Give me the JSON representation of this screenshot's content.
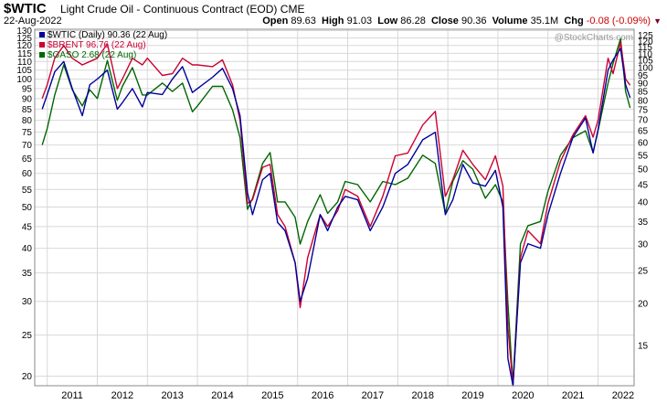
{
  "header": {
    "symbol": "$WTIC",
    "description": "Light Crude Oil - Continuous Contract (EOD)",
    "exchange": "CME",
    "date": "22-Aug-2022",
    "open_label": "Open",
    "open": "89.63",
    "high_label": "High",
    "high": "91.03",
    "low_label": "Low",
    "low": "86.28",
    "close_label": "Close",
    "close": "90.36",
    "volume_label": "Volume",
    "volume": "35.1M",
    "chg_label": "Chg",
    "chg": "-0.08 (-0.09%)",
    "watermark": "@StockCharts.com"
  },
  "colors": {
    "wtic": "#000099",
    "brent": "#cc0033",
    "gaso": "#006600",
    "grid": "#d8d8d8",
    "frame": "#888888",
    "down": "#cc0000"
  },
  "chart_data": {
    "type": "line",
    "y_scale": "log",
    "grid": true,
    "legend_position": "top-left",
    "x_tick_labels": [
      "2011",
      "2012",
      "2013",
      "2014",
      "2015",
      "2016",
      "2017",
      "2018",
      "2019",
      "2020",
      "2021",
      "2022"
    ],
    "left_axis": {
      "ylim": [
        19,
        131
      ],
      "ticks": [
        130,
        125,
        120,
        115,
        110,
        105,
        100,
        95,
        90,
        85,
        80,
        75,
        70,
        65,
        60,
        55,
        50,
        45,
        40,
        35,
        30,
        25,
        20
      ]
    },
    "right_axis": {
      "ylim": [
        11.4,
        130
      ],
      "ticks": [
        125,
        120,
        115,
        110,
        105,
        100,
        95,
        90,
        85,
        80,
        75,
        70,
        65,
        60,
        55,
        50,
        45,
        40,
        35,
        30,
        25,
        20,
        15
      ]
    },
    "series": [
      {
        "name": "$WTIC (Daily) 90.36 (22 Aug)",
        "axis": "left",
        "x": [
          2010.9,
          2011.0,
          2011.15,
          2011.33,
          2011.5,
          2011.7,
          2011.85,
          2012.0,
          2012.2,
          2012.4,
          2012.5,
          2012.7,
          2012.9,
          2013.0,
          2013.3,
          2013.5,
          2013.7,
          2013.9,
          2014.0,
          2014.3,
          2014.5,
          2014.7,
          2014.85,
          2015.0,
          2015.1,
          2015.3,
          2015.45,
          2015.6,
          2015.75,
          2015.95,
          2016.05,
          2016.2,
          2016.45,
          2016.6,
          2016.8,
          2016.95,
          2017.2,
          2017.45,
          2017.7,
          2017.95,
          2018.2,
          2018.5,
          2018.75,
          2018.95,
          2019.1,
          2019.3,
          2019.5,
          2019.75,
          2019.95,
          2020.1,
          2020.2,
          2020.3,
          2020.45,
          2020.6,
          2020.85,
          2021.0,
          2021.25,
          2021.5,
          2021.75,
          2021.9,
          2022.0,
          2022.2,
          2022.3,
          2022.45,
          2022.55,
          2022.64
        ],
        "y": [
          85,
          92,
          104,
          110,
          95,
          82,
          97,
          100,
          105,
          85,
          88,
          95,
          86,
          93,
          92,
          100,
          107,
          93,
          95,
          101,
          106,
          95,
          82,
          54,
          48,
          58,
          60,
          46,
          44,
          37,
          30,
          34,
          48,
          44,
          50,
          53,
          52,
          44,
          50,
          60,
          63,
          72,
          75,
          48,
          52,
          63,
          57,
          56,
          61,
          50,
          22,
          19,
          37,
          41,
          40,
          48,
          60,
          73,
          81,
          67,
          76,
          105,
          111,
          118,
          97,
          90.36
        ]
      },
      {
        "name": "$BRENT 96.76 (22 Aug)",
        "axis": "left",
        "x": [
          2010.9,
          2011.0,
          2011.15,
          2011.33,
          2011.5,
          2011.7,
          2011.85,
          2012.0,
          2012.2,
          2012.4,
          2012.5,
          2012.7,
          2012.9,
          2013.0,
          2013.3,
          2013.5,
          2013.7,
          2013.9,
          2014.0,
          2014.3,
          2014.5,
          2014.7,
          2014.85,
          2015.0,
          2015.1,
          2015.3,
          2015.45,
          2015.6,
          2015.75,
          2015.95,
          2016.05,
          2016.2,
          2016.45,
          2016.6,
          2016.8,
          2016.95,
          2017.2,
          2017.45,
          2017.7,
          2017.95,
          2018.2,
          2018.5,
          2018.75,
          2018.95,
          2019.1,
          2019.3,
          2019.5,
          2019.75,
          2019.95,
          2020.1,
          2020.2,
          2020.3,
          2020.45,
          2020.6,
          2020.85,
          2021.0,
          2021.25,
          2021.5,
          2021.75,
          2021.9,
          2022.0,
          2022.2,
          2022.3,
          2022.45,
          2022.55,
          2022.64
        ],
        "y": [
          90,
          97,
          112,
          120,
          112,
          108,
          110,
          112,
          121,
          95,
          100,
          112,
          108,
          112,
          102,
          103,
          112,
          108,
          108,
          107,
          111,
          97,
          80,
          51,
          52,
          62,
          63,
          48,
          45,
          37,
          29,
          38,
          48,
          45,
          49,
          55,
          53,
          45,
          53,
          66,
          67,
          78,
          84,
          53,
          58,
          68,
          63,
          58,
          66,
          56,
          26,
          19,
          38,
          44,
          41,
          51,
          64,
          74,
          82,
          73,
          80,
          112,
          103,
          122,
          100,
          96.76
        ]
      },
      {
        "name": "$GASO 2.68 (22 Aug)",
        "axis": "right",
        "x": [
          2010.9,
          2011.0,
          2011.15,
          2011.33,
          2011.5,
          2011.7,
          2011.85,
          2012.0,
          2012.2,
          2012.4,
          2012.5,
          2012.7,
          2012.9,
          2013.0,
          2013.3,
          2013.5,
          2013.7,
          2013.9,
          2014.0,
          2014.3,
          2014.5,
          2014.7,
          2014.85,
          2015.0,
          2015.1,
          2015.3,
          2015.45,
          2015.6,
          2015.75,
          2015.95,
          2016.05,
          2016.2,
          2016.45,
          2016.6,
          2016.8,
          2016.95,
          2017.2,
          2017.45,
          2017.7,
          2017.95,
          2018.2,
          2018.5,
          2018.75,
          2018.95,
          2019.1,
          2019.3,
          2019.5,
          2019.75,
          2019.95,
          2020.1,
          2020.2,
          2020.3,
          2020.45,
          2020.6,
          2020.85,
          2021.0,
          2021.25,
          2021.5,
          2021.75,
          2021.9,
          2022.0,
          2022.2,
          2022.3,
          2022.45,
          2022.55,
          2022.64
        ],
        "y": [
          59,
          66,
          83,
          102,
          86,
          77,
          86,
          81,
          105,
          80,
          88,
          100,
          83,
          83,
          90,
          85,
          90,
          74,
          77,
          88,
          88,
          75,
          62,
          38,
          41,
          52,
          56,
          40,
          40,
          36,
          30,
          35,
          42,
          37,
          40,
          46,
          45,
          40,
          46,
          45,
          47,
          55,
          52,
          37,
          46,
          53,
          50,
          41,
          45,
          40,
          20,
          11.5,
          30,
          34,
          35,
          43,
          55,
          62,
          65,
          56,
          65,
          90,
          103,
          122,
          85,
          76
        ]
      }
    ]
  }
}
